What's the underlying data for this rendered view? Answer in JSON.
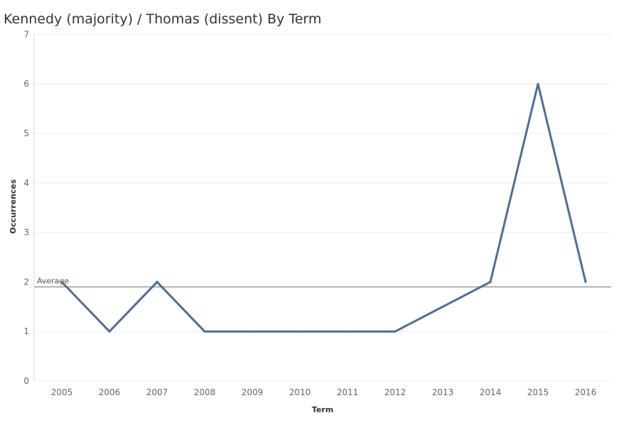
{
  "chart_data": {
    "type": "line",
    "title": "Kennedy (majority) / Thomas (dissent) By Term",
    "xlabel": "Term",
    "ylabel": "Occurrences",
    "categories": [
      "2005",
      "2006",
      "2007",
      "2008",
      "2009",
      "2010",
      "2011",
      "2012",
      "2013",
      "2014",
      "2015",
      "2016"
    ],
    "series": [
      {
        "values": [
          2,
          1,
          2,
          1,
          1,
          1,
          1,
          1,
          1.5,
          2,
          6,
          2
        ]
      }
    ],
    "ylim": [
      0,
      7
    ],
    "yticks": [
      0,
      1,
      2,
      3,
      4,
      5,
      6,
      7
    ],
    "grid": "horizontal",
    "reference_line": {
      "label": "Average",
      "value": 1.9
    },
    "colors": {
      "series": "#4e6d99",
      "reference": "#999999",
      "grid": "#eeeeee"
    }
  }
}
